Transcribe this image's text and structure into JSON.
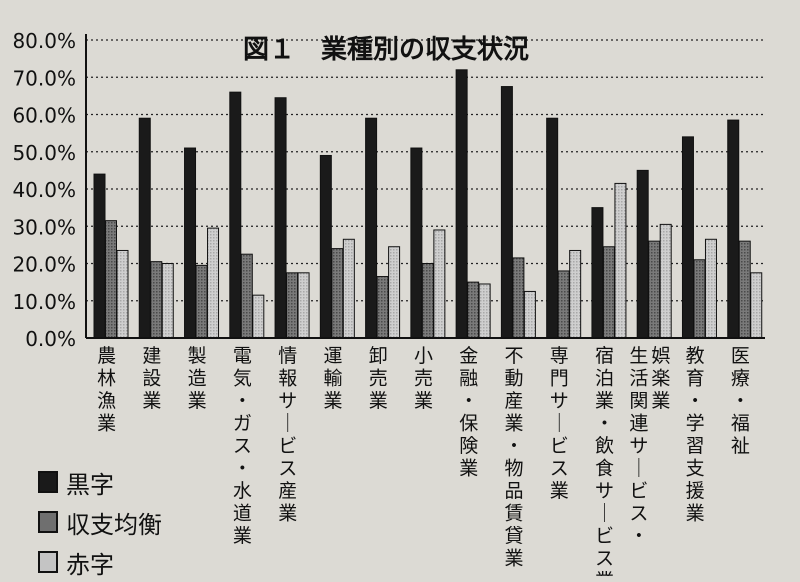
{
  "chart_data": {
    "type": "bar",
    "title": "図１　業種別の収支状況",
    "xlabel": "",
    "ylabel": "",
    "ylim": [
      0,
      80
    ],
    "y_tick_labels": [
      "0.0%",
      "10.0%",
      "20.0%",
      "30.0%",
      "40.0%",
      "50.0%",
      "60.0%",
      "70.0%",
      "80.0%"
    ],
    "grid": true,
    "legend_position": "bottom-left",
    "categories": [
      "農林漁業",
      "建設業",
      "製造業",
      "電気・ガス・水道業",
      "情報サービス産業",
      "運輸業",
      "卸売業",
      "小売業",
      "金融・保険業",
      "不動産業・物品賃貸業",
      "専門サービス業",
      "宿泊業・飲食サービス業",
      "生活関連サービス・娯楽業",
      "教育・学習支援業",
      "医療・福祉"
    ],
    "series": [
      {
        "name": "黒字",
        "color": "#1a1a1a",
        "values": [
          44,
          59,
          51,
          66,
          64.5,
          49,
          59,
          51,
          72,
          67.5,
          59,
          35,
          45,
          54,
          58.5
        ]
      },
      {
        "name": "収支均衡",
        "color": "#6f6f6f",
        "values": [
          31.5,
          20.5,
          19.5,
          22.5,
          17.5,
          24,
          16.5,
          20,
          15,
          21.5,
          18,
          24.5,
          26,
          21,
          26
        ]
      },
      {
        "name": "赤字",
        "color": "#bdbdbd",
        "values": [
          23.5,
          20,
          29.5,
          11.5,
          17.5,
          26.5,
          24.5,
          29,
          14.5,
          12.5,
          23.5,
          41.5,
          30.5,
          26.5,
          17.5
        ]
      }
    ]
  }
}
